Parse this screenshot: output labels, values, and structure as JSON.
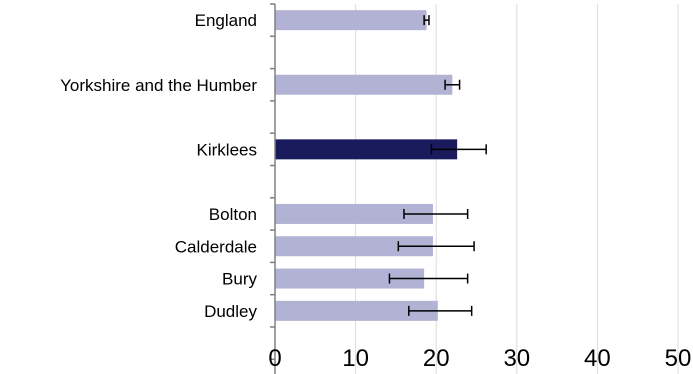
{
  "chart_data": {
    "type": "bar",
    "orientation": "horizontal",
    "title": "",
    "xlabel": "",
    "ylabel": "",
    "xlim": [
      0,
      50
    ],
    "x_ticks": [
      "0",
      "10",
      "20",
      "30",
      "40",
      "50"
    ],
    "grid": "vertical",
    "legend": "none",
    "slots": 12,
    "categories": [
      {
        "label": "England",
        "slot": 0,
        "value": 18.8,
        "lower": 18.5,
        "upper": 19.1,
        "highlight": false
      },
      {
        "label": "Yorkshire and the Humber",
        "slot": 2,
        "value": 22.0,
        "lower": 21.1,
        "upper": 22.9,
        "highlight": false
      },
      {
        "label": "Kirklees",
        "slot": 4,
        "value": 22.6,
        "lower": 19.4,
        "upper": 26.2,
        "highlight": true
      },
      {
        "label": "Bolton",
        "slot": 6,
        "value": 19.6,
        "lower": 16.0,
        "upper": 23.9,
        "highlight": false
      },
      {
        "label": "Calderdale",
        "slot": 7,
        "value": 19.6,
        "lower": 15.3,
        "upper": 24.7,
        "highlight": false
      },
      {
        "label": "Bury",
        "slot": 8,
        "value": 18.5,
        "lower": 14.2,
        "upper": 23.9,
        "highlight": false
      },
      {
        "label": "Dudley",
        "slot": 9,
        "value": 20.2,
        "lower": 16.6,
        "upper": 24.4,
        "highlight": false
      }
    ],
    "colors": {
      "bar": "#b2b2d5",
      "highlight": "#1a1b5c",
      "error_bar": "#000000",
      "grid": "#dcdcdc",
      "axis": "#808080"
    }
  }
}
